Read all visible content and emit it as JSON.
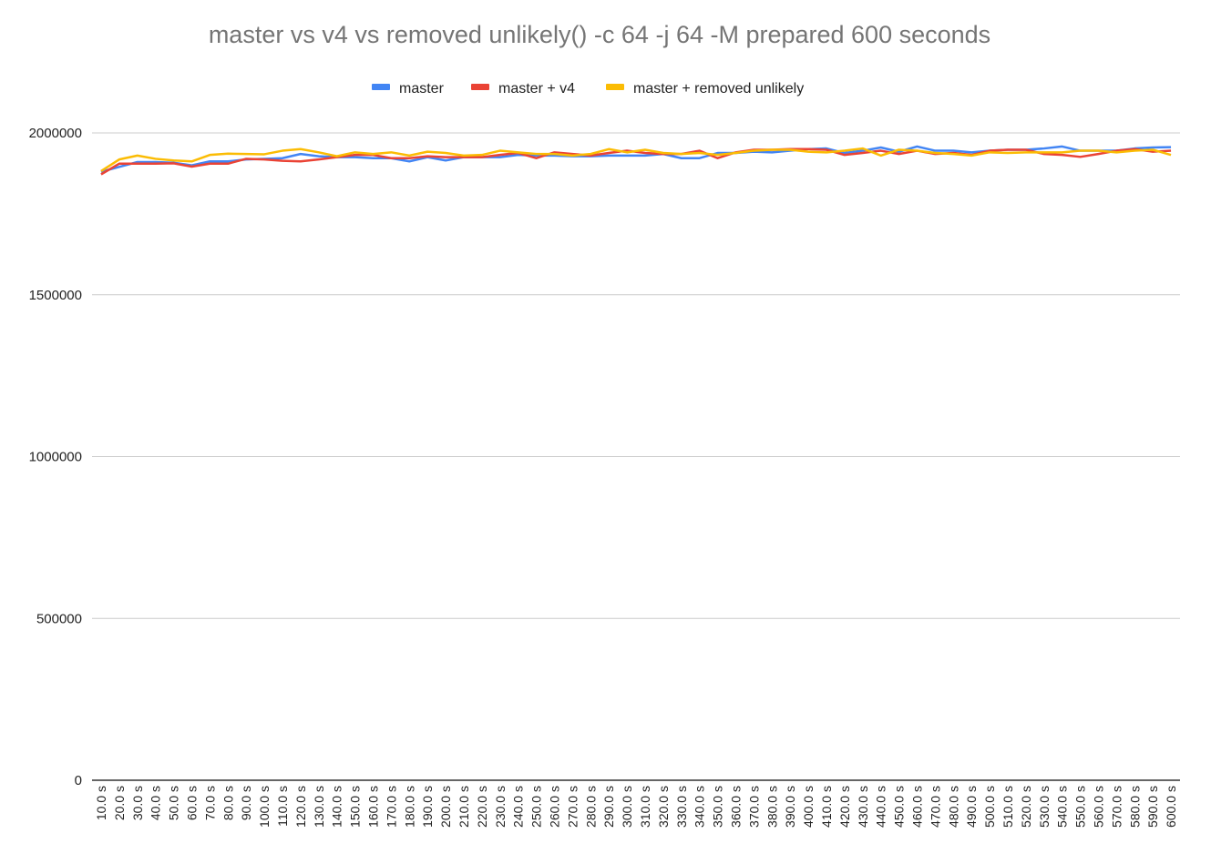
{
  "chart_data": {
    "type": "line",
    "title": "master vs v4 vs removed unlikely() -c 64 -j 64 -M prepared 600 seconds",
    "xlabel": "",
    "ylabel": "",
    "ylim": [
      0,
      2000000
    ],
    "yticks": [
      "0",
      "500000",
      "1000000",
      "1500000",
      "2000000"
    ],
    "grid": true,
    "legend_position": "top",
    "categories": [
      "10.0 s",
      "20.0 s",
      "30.0 s",
      "40.0 s",
      "50.0 s",
      "60.0 s",
      "70.0 s",
      "80.0 s",
      "90.0 s",
      "100.0 s",
      "110.0 s",
      "120.0 s",
      "130.0 s",
      "140.0 s",
      "150.0 s",
      "160.0 s",
      "170.0 s",
      "180.0 s",
      "190.0 s",
      "200.0 s",
      "210.0 s",
      "220.0 s",
      "230.0 s",
      "240.0 s",
      "250.0 s",
      "260.0 s",
      "270.0 s",
      "280.0 s",
      "290.0 s",
      "300.0 s",
      "310.0 s",
      "320.0 s",
      "330.0 s",
      "340.0 s",
      "350.0 s",
      "360.0 s",
      "370.0 s",
      "380.0 s",
      "390.0 s",
      "400.0 s",
      "410.0 s",
      "420.0 s",
      "430.0 s",
      "440.0 s",
      "450.0 s",
      "460.0 s",
      "470.0 s",
      "480.0 s",
      "490.0 s",
      "500.0 s",
      "510.0 s",
      "520.0 s",
      "530.0 s",
      "540.0 s",
      "550.0 s",
      "560.0 s",
      "570.0 s",
      "580.0 s",
      "590.0 s",
      "600.0 s"
    ],
    "series": [
      {
        "name": "master",
        "color": "#4285f4",
        "values": [
          1880000,
          1895000,
          1910000,
          1910000,
          1908000,
          1900000,
          1912000,
          1912000,
          1918000,
          1920000,
          1922000,
          1935000,
          1928000,
          1925000,
          1925000,
          1922000,
          1922000,
          1912000,
          1925000,
          1915000,
          1925000,
          1925000,
          1925000,
          1932000,
          1930000,
          1930000,
          1928000,
          1928000,
          1930000,
          1930000,
          1930000,
          1935000,
          1922000,
          1922000,
          1938000,
          1938000,
          1942000,
          1940000,
          1945000,
          1950000,
          1952000,
          1938000,
          1945000,
          1955000,
          1942000,
          1958000,
          1945000,
          1945000,
          1940000,
          1945000,
          1948000,
          1948000,
          1952000,
          1958000,
          1945000,
          1945000,
          1945000,
          1952000,
          1955000,
          1956000
        ]
      },
      {
        "name": "master + v4",
        "color": "#ea4335",
        "values": [
          1872000,
          1905000,
          1905000,
          1905000,
          1906000,
          1896000,
          1905000,
          1905000,
          1920000,
          1918000,
          1914000,
          1912000,
          1918000,
          1925000,
          1932000,
          1932000,
          1922000,
          1922000,
          1928000,
          1925000,
          1925000,
          1925000,
          1932000,
          1938000,
          1922000,
          1940000,
          1935000,
          1930000,
          1938000,
          1945000,
          1938000,
          1935000,
          1935000,
          1945000,
          1922000,
          1940000,
          1948000,
          1948000,
          1950000,
          1950000,
          1948000,
          1932000,
          1938000,
          1945000,
          1935000,
          1945000,
          1935000,
          1938000,
          1932000,
          1945000,
          1948000,
          1948000,
          1935000,
          1932000,
          1926000,
          1935000,
          1945000,
          1950000,
          1942000,
          1945000
        ]
      },
      {
        "name": "master + removed unlikely",
        "color": "#fbbc04",
        "values": [
          1882000,
          1918000,
          1930000,
          1920000,
          1915000,
          1912000,
          1932000,
          1936000,
          1935000,
          1934000,
          1945000,
          1950000,
          1940000,
          1928000,
          1940000,
          1935000,
          1940000,
          1930000,
          1942000,
          1938000,
          1930000,
          1932000,
          1945000,
          1940000,
          1935000,
          1935000,
          1930000,
          1935000,
          1950000,
          1940000,
          1948000,
          1938000,
          1935000,
          1938000,
          1932000,
          1938000,
          1945000,
          1948000,
          1948000,
          1942000,
          1940000,
          1945000,
          1952000,
          1930000,
          1948000,
          1945000,
          1938000,
          1935000,
          1930000,
          1940000,
          1938000,
          1940000,
          1940000,
          1940000,
          1945000,
          1945000,
          1940000,
          1945000,
          1948000,
          1932000
        ]
      }
    ]
  }
}
